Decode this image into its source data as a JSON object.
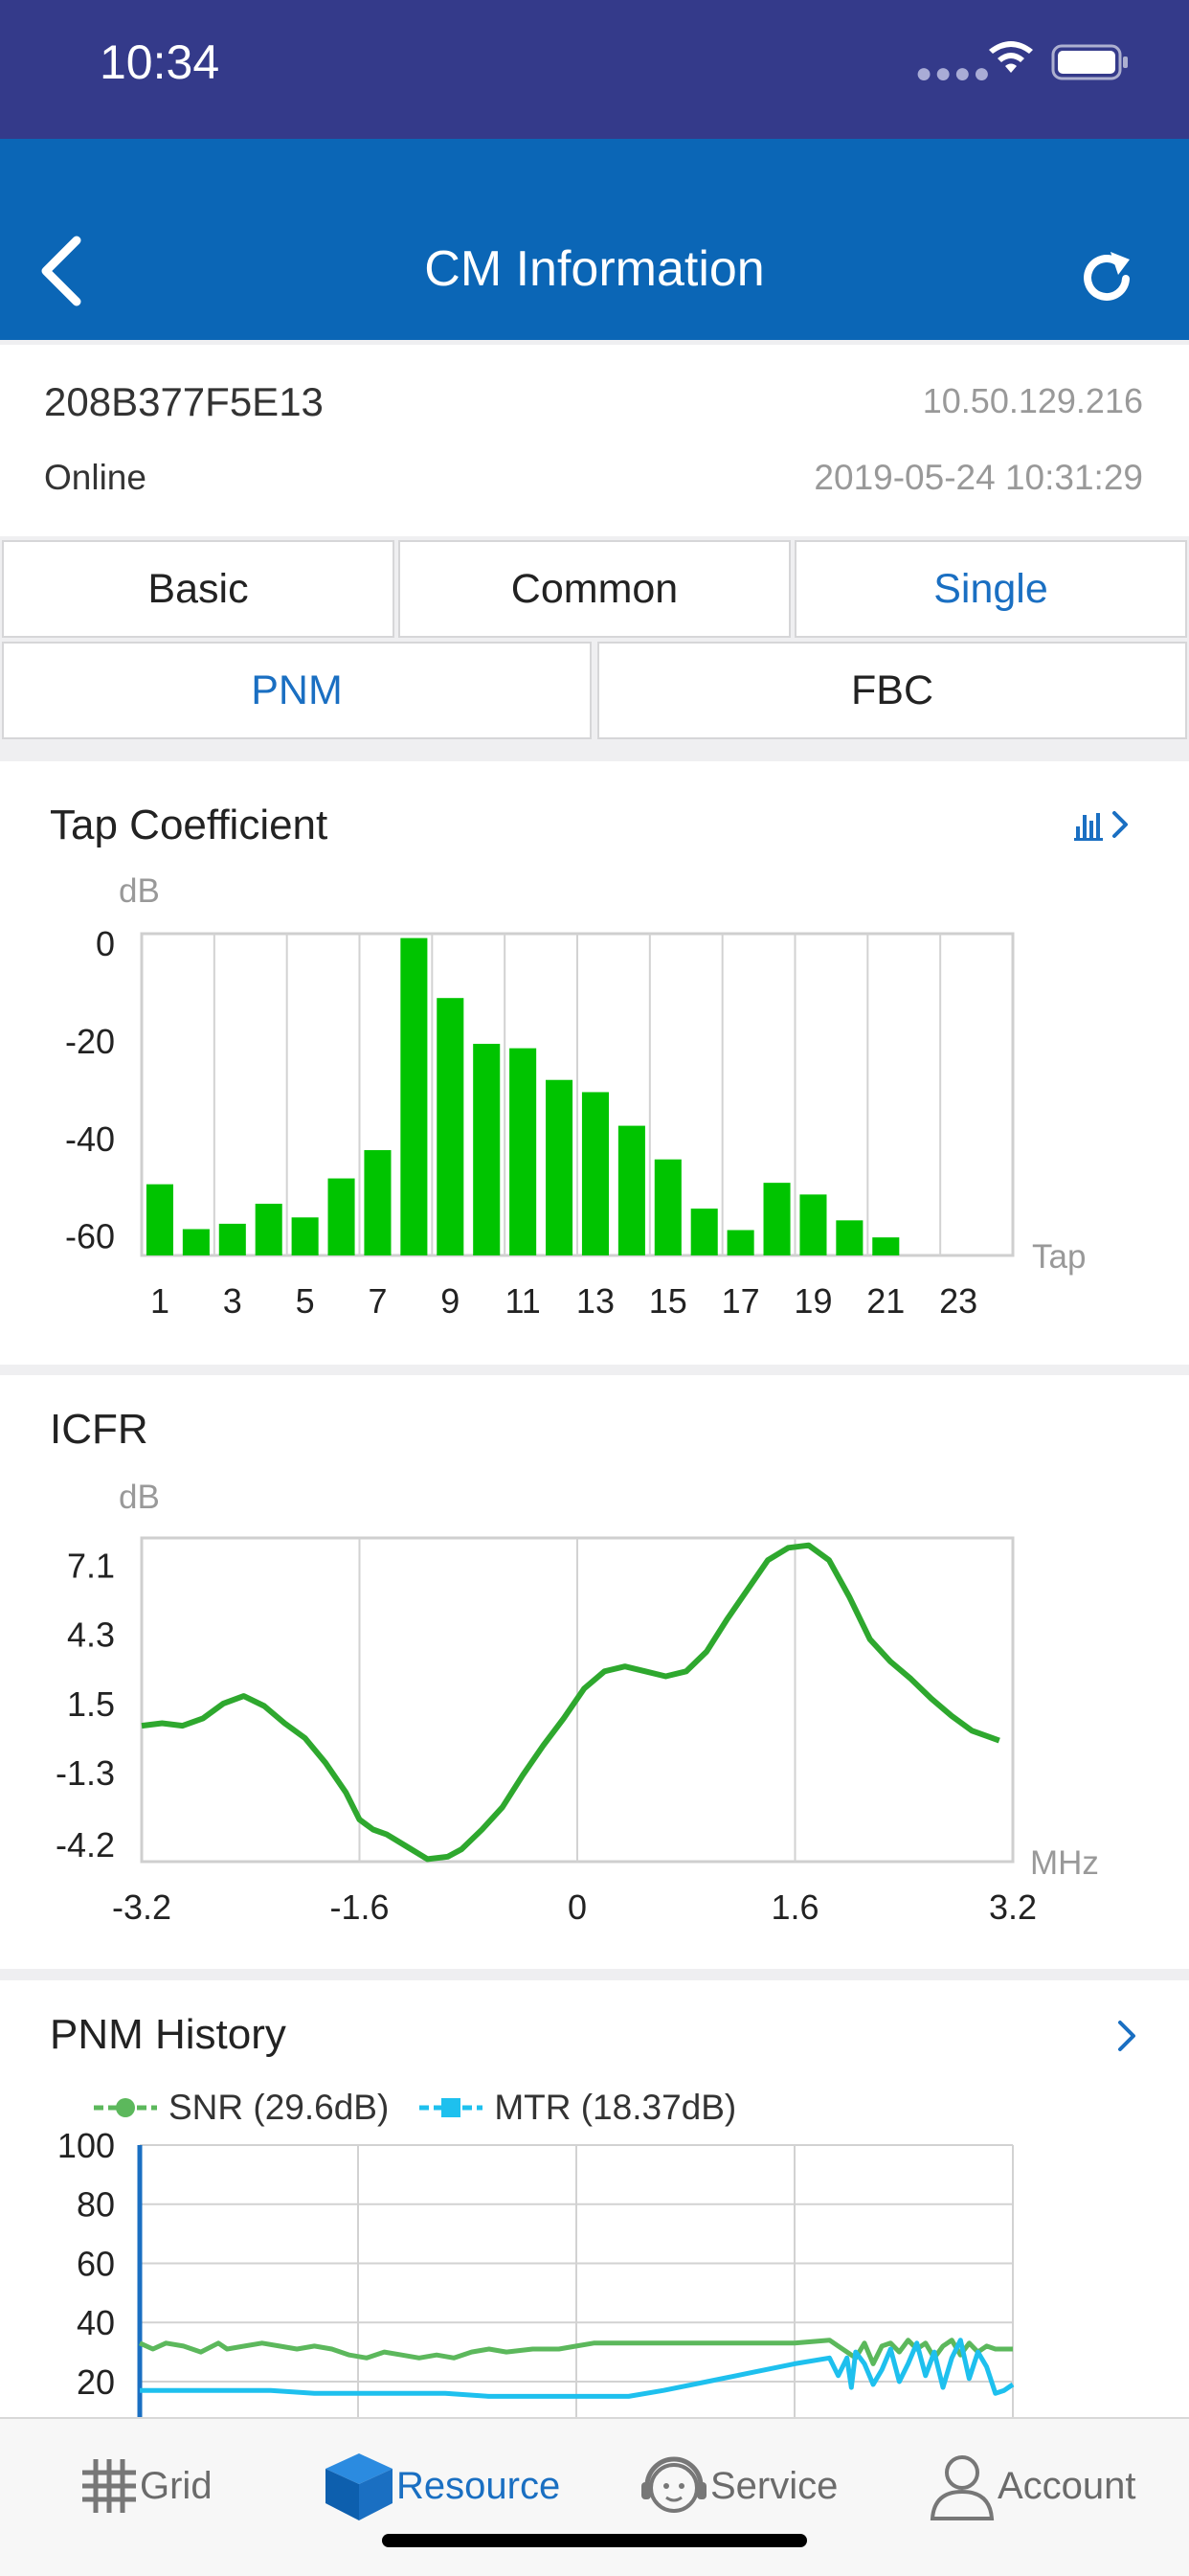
{
  "status_bar": {
    "time": "10:34"
  },
  "nav": {
    "title": "CM Information"
  },
  "cm": {
    "mac": "208B377F5E13",
    "ip": "10.50.129.216",
    "status": "Online",
    "timestamp": "2019-05-24 10:31:29"
  },
  "tabs": [
    {
      "label": "Basic",
      "active": false
    },
    {
      "label": "Common",
      "active": false
    },
    {
      "label": "Single",
      "active": true
    },
    {
      "label": "PNM",
      "active": true
    },
    {
      "label": "FBC",
      "active": false
    }
  ],
  "colors": {
    "nav": "#0b66b6",
    "status_bar": "#343a8a",
    "accent": "#1a6fc2",
    "bar": "#00c400",
    "snr": "#5cb85c",
    "mtr": "#1ec0ee"
  },
  "tap_coefficient": {
    "title": "Tap Coefficient",
    "y_unit": "dB",
    "x_unit": "Tap",
    "icon": "bar-chart-icon"
  },
  "icfr": {
    "title": "ICFR",
    "y_unit": "dB",
    "x_unit": "MHz"
  },
  "pnm_history": {
    "title": "PNM History",
    "legend_snr": "SNR (29.6dB)",
    "legend_mtr": "MTR (18.37dB)"
  },
  "bottom_tabs": [
    {
      "label": "Grid",
      "icon": "grid-icon",
      "active": false
    },
    {
      "label": "Resource",
      "icon": "cube-icon",
      "active": true
    },
    {
      "label": "Service",
      "icon": "headset-icon",
      "active": false
    },
    {
      "label": "Account",
      "icon": "user-icon",
      "active": false
    }
  ],
  "chart_data": [
    {
      "type": "bar",
      "title": "Tap Coefficient",
      "ylabel": "dB",
      "xlabel": "Tap",
      "y_ticks": [
        0,
        -20,
        -40,
        -60
      ],
      "y_tick_labels": [
        "0",
        "-20",
        "-40",
        "-60"
      ],
      "x_ticks": [
        1,
        3,
        5,
        7,
        9,
        11,
        13,
        15,
        17,
        19,
        21,
        23
      ],
      "x_tick_labels": [
        "1",
        "3",
        "5",
        "7",
        "9",
        "11",
        "13",
        "15",
        "17",
        "19",
        "21",
        "23"
      ],
      "ylim": [
        -64,
        2
      ],
      "xlim": [
        0.5,
        24.5
      ],
      "categories": [
        1,
        2,
        3,
        4,
        5,
        6,
        7,
        8,
        9,
        10,
        11,
        12,
        13,
        14,
        15,
        16,
        17,
        18,
        19,
        20,
        21,
        22,
        23,
        24
      ],
      "values": [
        -49.4,
        -58.6,
        -57.5,
        -53.4,
        -56.2,
        -48.2,
        -42.4,
        1.1,
        -11.2,
        -20.6,
        -21.5,
        -28.0,
        -30.5,
        -37.4,
        -44.3,
        -54.4,
        -58.8,
        -49.1,
        -51.5,
        -56.8,
        -60.3,
        null,
        null,
        null
      ],
      "grid": true
    },
    {
      "type": "line",
      "title": "ICFR",
      "ylabel": "dB",
      "xlabel": "MHz",
      "y_ticks": [
        7.1,
        4.3,
        1.5,
        -1.3,
        -4.2
      ],
      "y_tick_labels": [
        "7.1",
        "4.3",
        "1.5",
        "-1.3",
        "-4.2"
      ],
      "x_ticks": [
        -3.2,
        -1.6,
        0,
        1.6,
        3.2
      ],
      "x_tick_labels": [
        "-3.2",
        "-1.6",
        "0",
        "1.6",
        "3.2"
      ],
      "ylim": [
        -4.9,
        8.2
      ],
      "xlim": [
        -3.2,
        3.2
      ],
      "series": [
        {
          "x": [
            -3.2,
            -3.05,
            -2.9,
            -2.75,
            -2.6,
            -2.45,
            -2.3,
            -2.15,
            -2.0,
            -1.85,
            -1.7,
            -1.6,
            -1.5,
            -1.4,
            -1.25,
            -1.1,
            -0.95,
            -0.85,
            -0.7,
            -0.55,
            -0.4,
            -0.25,
            -0.1,
            0.05,
            0.2,
            0.35,
            0.5,
            0.65,
            0.8,
            0.95,
            1.1,
            1.25,
            1.4,
            1.55,
            1.7,
            1.85,
            2.0,
            2.15,
            2.3,
            2.45,
            2.6,
            2.75,
            2.9,
            3.0,
            3.1
          ],
          "y": [
            0.6,
            0.7,
            0.6,
            0.9,
            1.5,
            1.8,
            1.4,
            0.7,
            0.1,
            -0.9,
            -2.1,
            -3.2,
            -3.6,
            -3.8,
            -4.3,
            -4.8,
            -4.7,
            -4.4,
            -3.6,
            -2.7,
            -1.4,
            -0.2,
            0.9,
            2.1,
            2.8,
            3.0,
            2.8,
            2.6,
            2.8,
            3.6,
            4.9,
            6.1,
            7.3,
            7.8,
            7.9,
            7.3,
            5.8,
            4.1,
            3.2,
            2.5,
            1.7,
            1.0,
            0.4,
            0.2,
            0.0
          ]
        }
      ],
      "grid": true
    },
    {
      "type": "line",
      "title": "PNM History",
      "y_ticks": [
        100,
        80,
        60,
        40,
        20
      ],
      "y_tick_labels": [
        "100",
        "80",
        "60",
        "40",
        "20"
      ],
      "ylim": [
        8,
        100
      ],
      "legend": "top-left",
      "series": [
        {
          "name": "SNR (29.6dB)",
          "x": [
            0,
            0.015,
            0.03,
            0.05,
            0.07,
            0.09,
            0.1,
            0.12,
            0.14,
            0.16,
            0.18,
            0.2,
            0.22,
            0.24,
            0.26,
            0.28,
            0.3,
            0.32,
            0.34,
            0.36,
            0.38,
            0.4,
            0.42,
            0.45,
            0.48,
            0.5,
            0.52,
            0.54,
            0.56,
            0.6,
            0.65,
            0.7,
            0.75,
            0.79,
            0.8,
            0.81,
            0.82,
            0.83,
            0.84,
            0.85,
            0.86,
            0.87,
            0.88,
            0.89,
            0.9,
            0.91,
            0.92,
            0.93,
            0.94,
            0.95,
            0.96,
            0.97,
            0.98,
            0.99,
            1.0
          ],
          "y": [
            33,
            31,
            33,
            32,
            30,
            33,
            31,
            32,
            33,
            32,
            31,
            32,
            31,
            29,
            28,
            30,
            29,
            28,
            29,
            28,
            30,
            31,
            30,
            31,
            31,
            32,
            33,
            33,
            33,
            33,
            33,
            33,
            33,
            34,
            32,
            30,
            28,
            33,
            26,
            32,
            33,
            30,
            34,
            31,
            33,
            28,
            32,
            34,
            29,
            33,
            30,
            32,
            31,
            31,
            31
          ]
        },
        {
          "name": "MTR (18.37dB)",
          "x": [
            0,
            0.05,
            0.1,
            0.15,
            0.2,
            0.25,
            0.3,
            0.35,
            0.4,
            0.45,
            0.5,
            0.52,
            0.56,
            0.6,
            0.65,
            0.7,
            0.75,
            0.79,
            0.8,
            0.81,
            0.815,
            0.82,
            0.83,
            0.84,
            0.85,
            0.86,
            0.87,
            0.88,
            0.89,
            0.9,
            0.91,
            0.92,
            0.93,
            0.94,
            0.95,
            0.96,
            0.97,
            0.98,
            0.99,
            1.0
          ],
          "y": [
            17,
            17,
            17,
            17,
            16,
            16,
            16,
            16,
            15,
            15,
            15,
            15,
            15,
            17,
            20,
            23,
            26,
            28,
            22,
            28,
            18,
            30,
            26,
            19,
            24,
            31,
            20,
            26,
            33,
            22,
            30,
            18,
            28,
            34,
            21,
            30,
            25,
            16,
            17,
            19
          ]
        }
      ],
      "grid": true
    }
  ]
}
